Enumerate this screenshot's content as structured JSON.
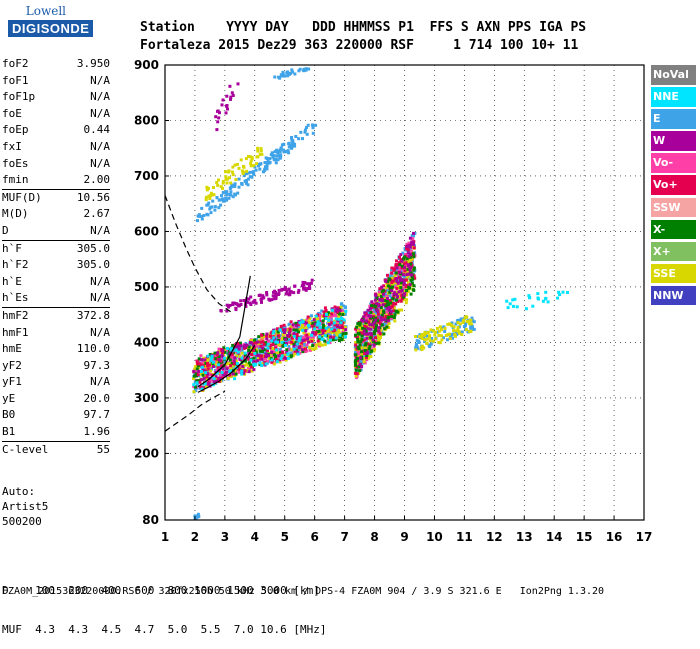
{
  "logo": {
    "top": "Lowell",
    "main": "DIGISONDE"
  },
  "header": {
    "row1": "Station    YYYY DAY   DDD HHMMSS P1  FFS S AXN PPS IGA PS",
    "row2": "Fortaleza 2015 Dez29 363 220000 RSF     1 714 100 10+ 11"
  },
  "params": [
    {
      "name": "foF2",
      "value": "3.950"
    },
    {
      "name": "foF1",
      "value": "N/A"
    },
    {
      "name": "foF1p",
      "value": "N/A"
    },
    {
      "name": "foE",
      "value": "N/A"
    },
    {
      "name": "foEp",
      "value": "0.44"
    },
    {
      "name": "fxI",
      "value": "N/A"
    },
    {
      "name": "foEs",
      "value": "N/A"
    },
    {
      "name": "fmin",
      "value": "2.00"
    },
    {
      "name": "MUF(D)",
      "value": "10.56"
    },
    {
      "name": "M(D)",
      "value": "2.67"
    },
    {
      "name": "D",
      "value": "N/A"
    },
    {
      "name": "h`F",
      "value": "305.0"
    },
    {
      "name": "h`F2",
      "value": "305.0"
    },
    {
      "name": "h`E",
      "value": "N/A"
    },
    {
      "name": "h`Es",
      "value": "N/A"
    },
    {
      "name": "hmF2",
      "value": "372.8"
    },
    {
      "name": "hmF1",
      "value": "N/A"
    },
    {
      "name": "hmE",
      "value": "110.0"
    },
    {
      "name": "yF2",
      "value": "97.3"
    },
    {
      "name": "yF1",
      "value": "N/A"
    },
    {
      "name": "yE",
      "value": "20.0"
    },
    {
      "name": "B0",
      "value": "97.7"
    },
    {
      "name": "B1",
      "value": "1.96"
    },
    {
      "name": "C-level",
      "value": "55"
    }
  ],
  "auto": {
    "label": "Auto:",
    "program": "Artist5",
    "version": "500200"
  },
  "dmuf": {
    "row1": "D    100  200  400  600  800 1000 1500 3000 [km]",
    "row2": "MUF  4.3  4.3  4.5  4.7  5.0  5.5  7.0 10.6 [MHz]"
  },
  "footer": "FZA0M_2015363220000.RSF / 320fx256h 50 kHz 5.0 km / DPS-4 FZA0M 904 / 3.9 S 321.6 E   Ion2Png 1.3.20",
  "legend": [
    {
      "label": "NoVal",
      "color": "#808080"
    },
    {
      "label": "NNE",
      "color": "#00e5ff"
    },
    {
      "label": "E",
      "color": "#3fa3e8"
    },
    {
      "label": "W",
      "color": "#a8009a"
    },
    {
      "label": "Vo-",
      "color": "#ff3fa8"
    },
    {
      "label": "Vo+",
      "color": "#e5004f"
    },
    {
      "label": "SSW",
      "color": "#f5a3a3"
    },
    {
      "label": "X-",
      "color": "#008000"
    },
    {
      "label": "X+",
      "color": "#80c060"
    },
    {
      "label": "SSE",
      "color": "#d8d800"
    },
    {
      "label": "NNW",
      "color": "#4040c0"
    }
  ],
  "chart_data": {
    "type": "scatter",
    "xlim": [
      1,
      17
    ],
    "ylim": [
      80,
      900
    ],
    "xticks": [
      1,
      2,
      3,
      4,
      5,
      6,
      7,
      8,
      9,
      10,
      11,
      12,
      13,
      14,
      15,
      16,
      17
    ],
    "yticks": [
      80,
      200,
      300,
      400,
      500,
      600,
      700,
      800,
      900
    ],
    "grid": true,
    "legend_position": "right",
    "clusters": [
      {
        "color_idx": 2,
        "x": [
          2.0,
          6.0
        ],
        "y": [
          625,
          795
        ],
        "spread": 12,
        "n": 160
      },
      {
        "color_idx": 9,
        "x": [
          2.3,
          4.2
        ],
        "y": [
          670,
          745
        ],
        "spread": 15,
        "n": 60
      },
      {
        "color_idx": 3,
        "x": [
          2.8,
          5.9
        ],
        "y": [
          462,
          508
        ],
        "spread": 8,
        "n": 100
      },
      {
        "color_idx": 2,
        "x": [
          1.9,
          7.0
        ],
        "y": [
          340,
          450
        ],
        "spread": 28,
        "n": 450
      },
      {
        "color_idx": 4,
        "x": [
          1.9,
          7.0
        ],
        "y": [
          345,
          440
        ],
        "spread": 30,
        "n": 250
      },
      {
        "color_idx": 9,
        "x": [
          1.9,
          7.0
        ],
        "y": [
          340,
          440
        ],
        "spread": 30,
        "n": 250
      },
      {
        "color_idx": 7,
        "x": [
          1.9,
          7.0
        ],
        "y": [
          345,
          440
        ],
        "spread": 30,
        "n": 150
      },
      {
        "color_idx": 5,
        "x": [
          1.9,
          7.0
        ],
        "y": [
          340,
          450
        ],
        "spread": 30,
        "n": 150
      },
      {
        "color_idx": 3,
        "x": [
          1.9,
          7.0
        ],
        "y": [
          340,
          445
        ],
        "spread": 30,
        "n": 120
      },
      {
        "color_idx": 1,
        "x": [
          1.9,
          7.0
        ],
        "y": [
          340,
          440
        ],
        "spread": 30,
        "n": 100
      },
      {
        "color_idx": 2,
        "x": [
          7.3,
          9.3
        ],
        "y": [
          380,
          560
        ],
        "spread": 45,
        "n": 350
      },
      {
        "color_idx": 4,
        "x": [
          7.3,
          9.3
        ],
        "y": [
          380,
          560
        ],
        "spread": 45,
        "n": 200
      },
      {
        "color_idx": 9,
        "x": [
          7.3,
          9.3
        ],
        "y": [
          380,
          540
        ],
        "spread": 45,
        "n": 200
      },
      {
        "color_idx": 5,
        "x": [
          7.3,
          9.3
        ],
        "y": [
          385,
          560
        ],
        "spread": 45,
        "n": 150
      },
      {
        "color_idx": 7,
        "x": [
          7.3,
          9.3
        ],
        "y": [
          385,
          540
        ],
        "spread": 45,
        "n": 150
      },
      {
        "color_idx": 3,
        "x": [
          7.3,
          9.3
        ],
        "y": [
          385,
          560
        ],
        "spread": 45,
        "n": 100
      },
      {
        "color_idx": 2,
        "x": [
          9.3,
          11.3
        ],
        "y": [
          400,
          440
        ],
        "spread": 15,
        "n": 80
      },
      {
        "color_idx": 9,
        "x": [
          9.3,
          11.3
        ],
        "y": [
          400,
          440
        ],
        "spread": 15,
        "n": 70
      },
      {
        "color_idx": 1,
        "x": [
          12.3,
          14.6
        ],
        "y": [
          465,
          495
        ],
        "spread": 12,
        "n": 25
      },
      {
        "color_idx": 3,
        "x": [
          2.6,
          3.4
        ],
        "y": [
          790,
          880
        ],
        "spread": 18,
        "n": 20
      },
      {
        "color_idx": 2,
        "x": [
          4.6,
          5.8
        ],
        "y": [
          880,
          900
        ],
        "spread": 5,
        "n": 25
      },
      {
        "color_idx": 2,
        "x": [
          1.9,
          2.1
        ],
        "y": [
          85,
          90
        ],
        "spread": 4,
        "n": 10
      }
    ],
    "curves": [
      {
        "style": "dashed",
        "x": [
          1.0,
          1.35,
          1.7,
          2.0,
          2.4,
          2.8,
          3.2
        ],
        "y": [
          665,
          615,
          570,
          535,
          495,
          470,
          455
        ]
      },
      {
        "style": "solid",
        "x": [
          2.1,
          2.5,
          3.0,
          3.5,
          3.85
        ],
        "y": [
          320,
          335,
          360,
          410,
          520
        ]
      },
      {
        "style": "solid",
        "x": [
          2.1,
          2.4,
          2.8,
          3.2,
          3.7,
          4.0
        ],
        "y": [
          310,
          318,
          330,
          345,
          370,
          395
        ]
      },
      {
        "style": "dashed",
        "x": [
          1.0,
          1.4,
          1.8,
          2.2,
          2.6,
          3.0
        ],
        "y": [
          240,
          255,
          270,
          287,
          300,
          312
        ]
      }
    ]
  }
}
